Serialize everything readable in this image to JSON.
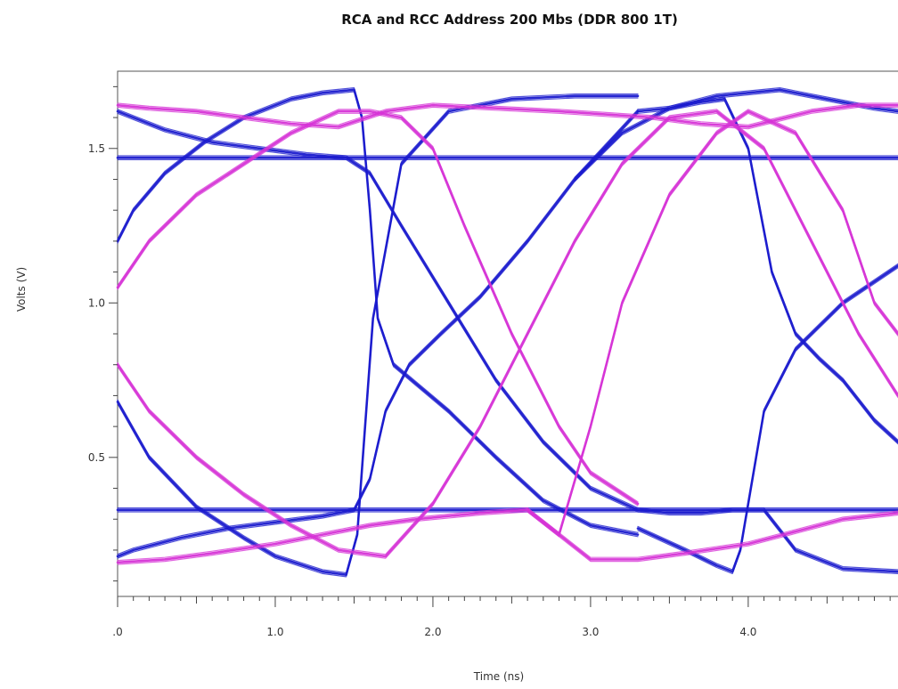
{
  "chart_data": {
    "type": "line",
    "title": "RCA and RCC Address 200 Mbs (DDR 800 1T)",
    "xlabel": "Time (ns)",
    "ylabel": "Volts (V)",
    "xlim": [
      0,
      4.95
    ],
    "ylim": [
      0.05,
      1.75
    ],
    "x_ticks": [
      {
        "value": 0,
        "label": ".0"
      },
      {
        "value": 1,
        "label": "1.0"
      },
      {
        "value": 2,
        "label": "2.0"
      },
      {
        "value": 3,
        "label": "3.0"
      },
      {
        "value": 4,
        "label": "4.0"
      }
    ],
    "y_ticks": [
      {
        "value": 0.5,
        "label": "0.5"
      },
      {
        "value": 1.0,
        "label": "1.0"
      },
      {
        "value": 1.5,
        "label": "1.5"
      }
    ],
    "grid": false,
    "legend": "none",
    "colors": {
      "blue": "#1a1acd",
      "magenta": "#d633d6"
    },
    "series": [
      {
        "color": "blue",
        "x": [
          0,
          0.8,
          1.3,
          1.6,
          2.0,
          2.2,
          2.6,
          3.0,
          3.3,
          3.6,
          4.0,
          4.2,
          4.6,
          4.95
        ],
        "y": [
          1.47,
          1.47,
          1.47,
          1.47,
          1.47,
          1.47,
          1.47,
          1.47,
          1.47,
          1.47,
          1.47,
          1.47,
          1.47,
          1.47
        ]
      },
      {
        "color": "blue",
        "x": [
          0,
          0.8,
          1.3,
          1.6,
          2.0,
          2.2,
          2.6,
          3.0,
          3.3,
          3.6,
          4.0,
          4.2,
          4.6,
          4.95
        ],
        "y": [
          0.33,
          0.33,
          0.33,
          0.33,
          0.33,
          0.33,
          0.33,
          0.33,
          0.33,
          0.33,
          0.33,
          0.33,
          0.33,
          0.33
        ]
      },
      {
        "color": "blue",
        "x": [
          0,
          0.1,
          0.3,
          0.6,
          0.9,
          1.2,
          1.45,
          1.6,
          1.8,
          2.1,
          2.4,
          2.7,
          3.0,
          3.3
        ],
        "y": [
          1.62,
          1.6,
          1.56,
          1.52,
          1.5,
          1.48,
          1.47,
          1.42,
          1.25,
          1.0,
          0.75,
          0.55,
          0.4,
          0.33
        ]
      },
      {
        "color": "blue",
        "x": [
          0,
          0.1,
          0.4,
          0.7,
          1.0,
          1.3,
          1.5,
          1.6,
          1.7,
          1.85,
          2.05,
          2.3,
          2.6,
          2.9,
          3.3
        ],
        "y": [
          0.18,
          0.2,
          0.24,
          0.27,
          0.29,
          0.31,
          0.33,
          0.43,
          0.65,
          0.8,
          0.9,
          1.02,
          1.2,
          1.4,
          1.62
        ]
      },
      {
        "color": "blue",
        "x": [
          0,
          0.1,
          0.3,
          0.55,
          0.8,
          1.1,
          1.3,
          1.5,
          1.55,
          1.6,
          1.65,
          1.75,
          2.1,
          2.4,
          2.7,
          3.0,
          3.3
        ],
        "y": [
          1.2,
          1.3,
          1.42,
          1.52,
          1.6,
          1.66,
          1.68,
          1.69,
          1.6,
          1.3,
          0.95,
          0.8,
          0.65,
          0.5,
          0.36,
          0.28,
          0.25
        ]
      },
      {
        "color": "blue",
        "x": [
          0,
          0.2,
          0.5,
          0.8,
          1.0,
          1.3,
          1.45,
          1.52,
          1.57,
          1.62,
          1.8,
          2.1,
          2.5,
          2.9,
          3.3
        ],
        "y": [
          0.68,
          0.5,
          0.34,
          0.24,
          0.18,
          0.13,
          0.12,
          0.25,
          0.6,
          0.95,
          1.45,
          1.62,
          1.66,
          1.67,
          1.67
        ]
      },
      {
        "color": "blue",
        "x": [
          2.9,
          3.2,
          3.5,
          3.8,
          4.0,
          4.2,
          4.4,
          4.6,
          4.8,
          4.95
        ],
        "y": [
          1.4,
          1.55,
          1.63,
          1.67,
          1.68,
          1.69,
          1.67,
          1.65,
          1.63,
          1.62
        ]
      },
      {
        "color": "blue",
        "x": [
          3.3,
          3.6,
          3.8,
          3.9,
          3.95,
          4.1,
          4.3,
          4.6,
          4.95
        ],
        "y": [
          0.27,
          0.2,
          0.15,
          0.13,
          0.2,
          0.65,
          0.85,
          1.0,
          1.12
        ]
      },
      {
        "color": "blue",
        "x": [
          3.3,
          3.5,
          3.7,
          3.9,
          4.1,
          4.3,
          4.6,
          4.95
        ],
        "y": [
          0.33,
          0.32,
          0.32,
          0.33,
          0.33,
          0.2,
          0.14,
          0.13
        ]
      },
      {
        "color": "blue",
        "x": [
          3.3,
          3.5,
          3.7,
          3.85,
          4.0,
          4.15,
          4.3,
          4.45,
          4.6,
          4.8,
          4.95
        ],
        "y": [
          1.62,
          1.63,
          1.65,
          1.66,
          1.5,
          1.1,
          0.9,
          0.82,
          0.75,
          0.62,
          0.55
        ]
      },
      {
        "color": "magenta",
        "x": [
          0,
          0.2,
          0.5,
          0.8,
          1.1,
          1.4,
          1.7,
          2.0,
          2.4,
          2.8,
          3.1,
          3.4,
          3.7,
          4.0,
          4.4,
          4.7,
          4.95
        ],
        "y": [
          1.64,
          1.63,
          1.62,
          1.6,
          1.58,
          1.57,
          1.62,
          1.64,
          1.63,
          1.62,
          1.61,
          1.6,
          1.58,
          1.57,
          1.62,
          1.64,
          1.64
        ]
      },
      {
        "color": "magenta",
        "x": [
          0,
          0.3,
          0.6,
          1.0,
          1.3,
          1.6,
          1.9,
          2.3,
          2.6,
          3.0,
          3.3,
          3.6,
          4.0,
          4.3,
          4.6,
          4.95
        ],
        "y": [
          0.16,
          0.17,
          0.19,
          0.22,
          0.25,
          0.28,
          0.3,
          0.32,
          0.33,
          0.17,
          0.17,
          0.19,
          0.22,
          0.26,
          0.3,
          0.32
        ]
      },
      {
        "color": "magenta",
        "x": [
          0,
          0.2,
          0.5,
          0.8,
          1.1,
          1.4,
          1.6,
          1.8,
          2.0,
          2.2,
          2.5,
          2.8,
          3.0,
          3.3
        ],
        "y": [
          1.05,
          1.2,
          1.35,
          1.45,
          1.55,
          1.62,
          1.62,
          1.6,
          1.5,
          1.25,
          0.9,
          0.6,
          0.45,
          0.35
        ]
      },
      {
        "color": "magenta",
        "x": [
          0,
          0.2,
          0.5,
          0.8,
          1.1,
          1.4,
          1.7,
          2.0,
          2.3,
          2.6,
          2.9,
          3.2,
          3.5,
          3.8,
          4.1,
          4.4,
          4.7,
          4.95
        ],
        "y": [
          0.8,
          0.65,
          0.5,
          0.38,
          0.28,
          0.2,
          0.18,
          0.35,
          0.6,
          0.9,
          1.2,
          1.45,
          1.6,
          1.62,
          1.5,
          1.2,
          0.9,
          0.7
        ]
      },
      {
        "color": "magenta",
        "x": [
          2.6,
          2.8,
          3.0,
          3.2,
          3.5,
          3.8,
          4.0,
          4.3,
          4.6,
          4.8,
          4.95
        ],
        "y": [
          0.33,
          0.25,
          0.6,
          1.0,
          1.35,
          1.55,
          1.62,
          1.55,
          1.3,
          1.0,
          0.9
        ]
      }
    ]
  }
}
